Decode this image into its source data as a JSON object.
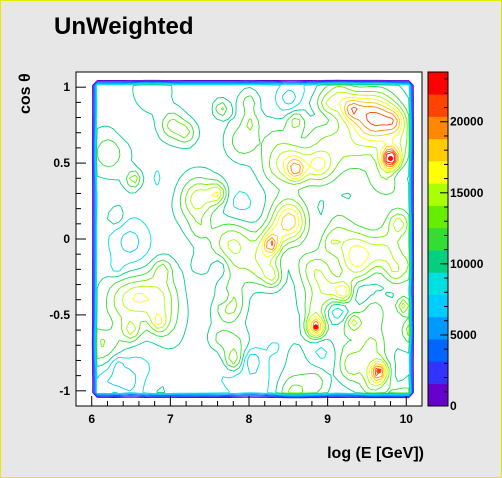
{
  "chart_data": {
    "type": "heatmap",
    "subtype": "contour",
    "title": "UnWeighted",
    "xlabel": "log (E [GeV])",
    "ylabel": "cos θ",
    "xlim": [
      5.8,
      10.2
    ],
    "ylim": [
      -1.1,
      1.1
    ],
    "xticks": [
      "6",
      "7",
      "8",
      "9",
      "10"
    ],
    "yticks": [
      "1",
      "0.5",
      "0",
      "-0.5",
      "-1"
    ],
    "zlim": [
      0,
      23500
    ],
    "zticks": [
      "0",
      "5000",
      "10000",
      "15000",
      "20000"
    ],
    "grid": false,
    "colorbar": "right",
    "density_level": 10000,
    "hotspots": [
      {
        "x": 9.8,
        "y": 0.53,
        "z": 23000
      },
      {
        "x": 8.85,
        "y": -0.58,
        "z": 22000
      },
      {
        "x": 9.65,
        "y": -0.87,
        "z": 21000
      },
      {
        "x": 9.2,
        "y": -0.35,
        "z": 17000
      },
      {
        "x": 7.6,
        "y": 0.3,
        "z": 16000
      },
      {
        "x": 8.3,
        "y": -0.25,
        "z": 15000
      },
      {
        "x": 6.5,
        "y": -0.6,
        "z": 14000
      },
      {
        "x": 7.2,
        "y": 0.7,
        "z": 14000
      },
      {
        "x": 9.3,
        "y": 0.85,
        "z": 15000
      },
      {
        "x": 6.3,
        "y": 0.15,
        "z": 13000
      },
      {
        "x": 8.0,
        "y": 0.9,
        "z": 13000
      },
      {
        "x": 7.8,
        "y": -0.8,
        "z": 14500
      },
      {
        "x": 6.9,
        "y": -0.2,
        "z": 13500
      },
      {
        "x": 9.9,
        "y": 0.1,
        "z": 14000
      },
      {
        "x": 8.6,
        "y": 0.45,
        "z": 15500
      }
    ],
    "palette": [
      "#6600cc",
      "#3333ff",
      "#0066ff",
      "#0099ff",
      "#00ccff",
      "#00e0e0",
      "#00d080",
      "#33dd33",
      "#66ee00",
      "#aaff00",
      "#ffff00",
      "#ffcc00",
      "#ff8800",
      "#ff4400",
      "#ff0000"
    ]
  }
}
